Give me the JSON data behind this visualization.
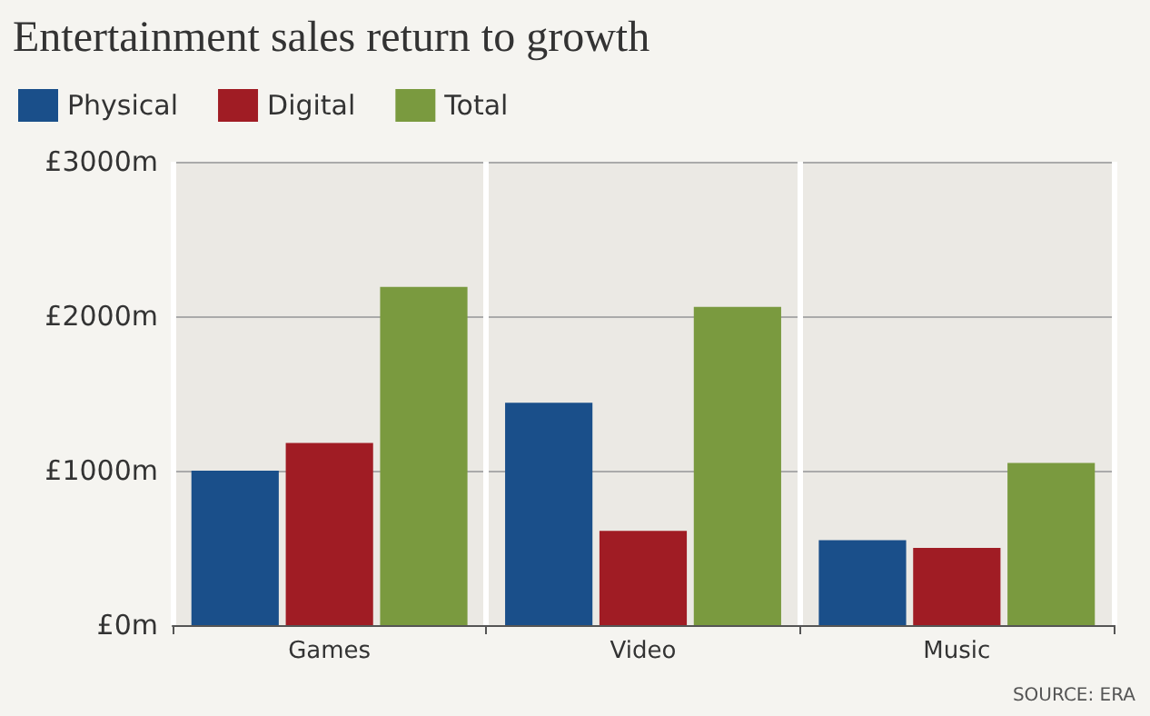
{
  "chart_data": {
    "type": "bar",
    "title": "Entertainment sales return to growth",
    "categories": [
      "Games",
      "Video",
      "Music"
    ],
    "series": [
      {
        "name": "Physical",
        "color": "#1a4f8a",
        "values": [
          1000,
          1440,
          550
        ]
      },
      {
        "name": "Digital",
        "color": "#a01c24",
        "values": [
          1180,
          610,
          500
        ]
      },
      {
        "name": "Total",
        "color": "#7a9a3f",
        "values": [
          2190,
          2060,
          1050
        ]
      }
    ],
    "ylim": [
      0,
      3000
    ],
    "yticks": [
      {
        "value": 0,
        "label": "£0m"
      },
      {
        "value": 1000,
        "label": "£1000m"
      },
      {
        "value": 2000,
        "label": "£2000m"
      },
      {
        "value": 3000,
        "label": "£3000m"
      }
    ],
    "grid": true,
    "legend": "top left",
    "annotations": [
      "SOURCE: ERA"
    ]
  }
}
